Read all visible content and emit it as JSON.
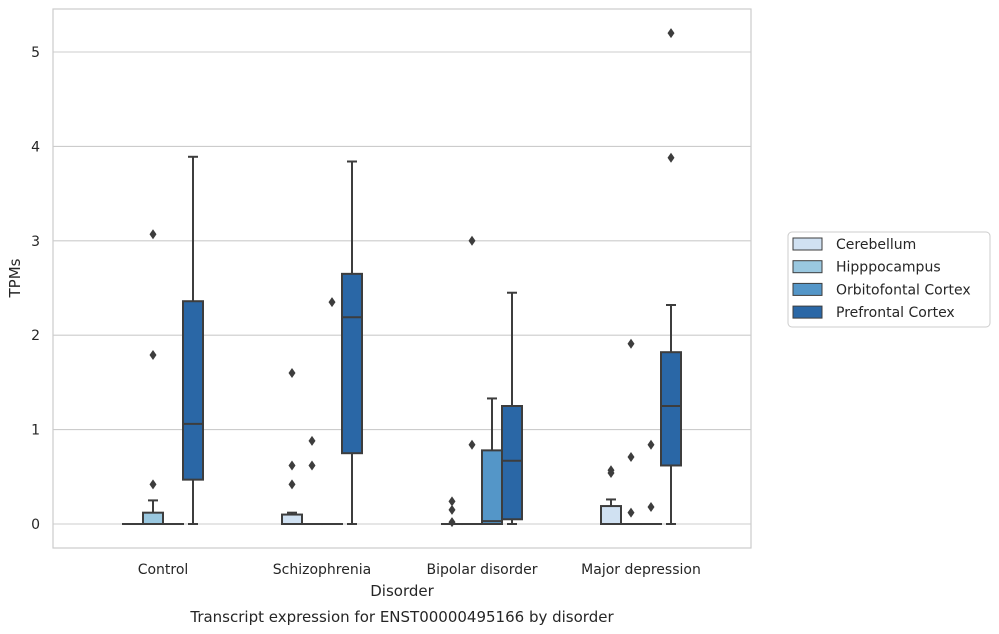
{
  "chart_data": {
    "type": "box",
    "title": "Transcript expression for ENST00000495166 by disorder",
    "xlabel": "Disorder",
    "ylabel": "TPMs",
    "ylim": [
      -0.25,
      5.45
    ],
    "yticks": [
      0,
      1,
      2,
      3,
      4,
      5
    ],
    "grid": true,
    "legend_position": "right",
    "categories": [
      "Control",
      "Schizophrenia",
      "Bipolar disorder",
      "Major depression"
    ],
    "series": [
      {
        "name": "Cerebellum",
        "color": "#d0e1f2",
        "boxes": [
          {
            "whisker_low": 0,
            "q1": 0,
            "median": 0,
            "q3": 0,
            "whisker_high": 0,
            "outliers": []
          },
          {
            "whisker_low": 0,
            "q1": 0,
            "median": 0,
            "q3": 0.1,
            "whisker_high": 0.12,
            "outliers": [
              0.42,
              0.62,
              1.6
            ]
          },
          {
            "whisker_low": 0,
            "q1": 0,
            "median": 0,
            "q3": 0,
            "whisker_high": 0,
            "outliers": [
              0.02,
              0.15,
              0.24
            ]
          },
          {
            "whisker_low": 0,
            "q1": 0,
            "median": 0,
            "q3": 0.19,
            "whisker_high": 0.26,
            "outliers": [
              0.54,
              0.57
            ]
          }
        ]
      },
      {
        "name": "Hipppocampus",
        "color": "#9ac8e0",
        "boxes": [
          {
            "whisker_low": 0,
            "q1": 0,
            "median": 0,
            "q3": 0.12,
            "whisker_high": 0.25,
            "outliers": [
              0.42,
              1.79,
              3.07
            ]
          },
          {
            "whisker_low": 0,
            "q1": 0,
            "median": 0,
            "q3": 0,
            "whisker_high": 0,
            "outliers": [
              0.62,
              0.88
            ]
          },
          {
            "whisker_low": 0,
            "q1": 0,
            "median": 0,
            "q3": 0,
            "whisker_high": 0,
            "outliers": [
              0.84,
              3.0
            ]
          },
          {
            "whisker_low": 0,
            "q1": 0,
            "median": 0,
            "q3": 0,
            "whisker_high": 0,
            "outliers": [
              0.12,
              0.71,
              1.91
            ]
          }
        ]
      },
      {
        "name": "Orbitofontal Cortex",
        "color": "#5496c8",
        "boxes": [
          {
            "whisker_low": 0,
            "q1": 0,
            "median": 0,
            "q3": 0,
            "whisker_high": 0,
            "outliers": []
          },
          {
            "whisker_low": 0,
            "q1": 0,
            "median": 0,
            "q3": 0,
            "whisker_high": 0,
            "outliers": [
              2.35
            ]
          },
          {
            "whisker_low": 0,
            "q1": 0,
            "median": 0.03,
            "q3": 0.78,
            "whisker_high": 1.33,
            "outliers": []
          },
          {
            "whisker_low": 0,
            "q1": 0,
            "median": 0,
            "q3": 0,
            "whisker_high": 0,
            "outliers": [
              0.18,
              0.84
            ]
          }
        ]
      },
      {
        "name": "Prefrontal Cortex",
        "color": "#2a67a6",
        "boxes": [
          {
            "whisker_low": 0,
            "q1": 0.47,
            "median": 1.06,
            "q3": 2.36,
            "whisker_high": 3.89,
            "outliers": []
          },
          {
            "whisker_low": 0,
            "q1": 0.75,
            "median": 2.19,
            "q3": 2.65,
            "whisker_high": 3.84,
            "outliers": []
          },
          {
            "whisker_low": 0,
            "q1": 0.05,
            "median": 0.67,
            "q3": 1.25,
            "whisker_high": 2.45,
            "outliers": []
          },
          {
            "whisker_low": 0,
            "q1": 0.62,
            "median": 1.25,
            "q3": 1.82,
            "whisker_high": 2.32,
            "outliers": [
              3.88,
              5.2
            ]
          }
        ]
      }
    ]
  }
}
